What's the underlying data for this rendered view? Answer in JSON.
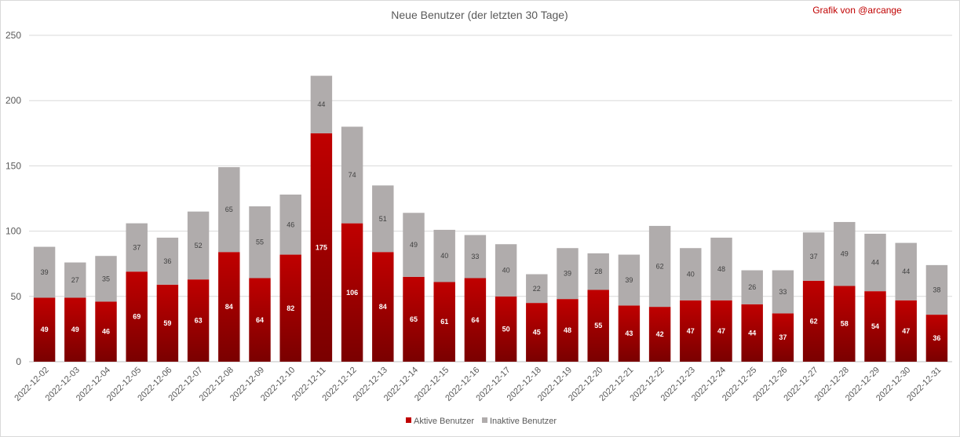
{
  "chart_data": {
    "type": "bar",
    "stacked": true,
    "title": "Neue Benutzer (der letzten 30 Tage)",
    "credit": "Grafik von @arcange",
    "categories": [
      "2022-12-02",
      "2022-12-03",
      "2022-12-04",
      "2022-12-05",
      "2022-12-06",
      "2022-12-07",
      "2022-12-08",
      "2022-12-09",
      "2022-12-10",
      "2022-12-11",
      "2022-12-12",
      "2022-12-13",
      "2022-12-14",
      "2022-12-15",
      "2022-12-16",
      "2022-12-17",
      "2022-12-18",
      "2022-12-19",
      "2022-12-20",
      "2022-12-21",
      "2022-12-22",
      "2022-12-23",
      "2022-12-24",
      "2022-12-25",
      "2022-12-26",
      "2022-12-27",
      "2022-12-28",
      "2022-12-29",
      "2022-12-30",
      "2022-12-31"
    ],
    "series": [
      {
        "name": "Aktive Benutzer",
        "color": "#c00000",
        "values": [
          49,
          49,
          46,
          69,
          59,
          63,
          84,
          64,
          82,
          175,
          106,
          84,
          65,
          61,
          64,
          50,
          45,
          48,
          55,
          43,
          42,
          47,
          47,
          44,
          37,
          62,
          58,
          54,
          47,
          36
        ]
      },
      {
        "name": "Inaktive Benutzer",
        "color": "#b0acac",
        "values": [
          39,
          27,
          35,
          37,
          36,
          52,
          65,
          55,
          46,
          44,
          74,
          51,
          49,
          40,
          33,
          40,
          22,
          39,
          28,
          39,
          62,
          40,
          48,
          26,
          33,
          37,
          49,
          44,
          44,
          38
        ]
      }
    ],
    "ylim": [
      0,
      250
    ],
    "yticks": [
      0,
      50,
      100,
      150,
      200,
      250
    ],
    "grid": true,
    "legend": "bottom"
  }
}
